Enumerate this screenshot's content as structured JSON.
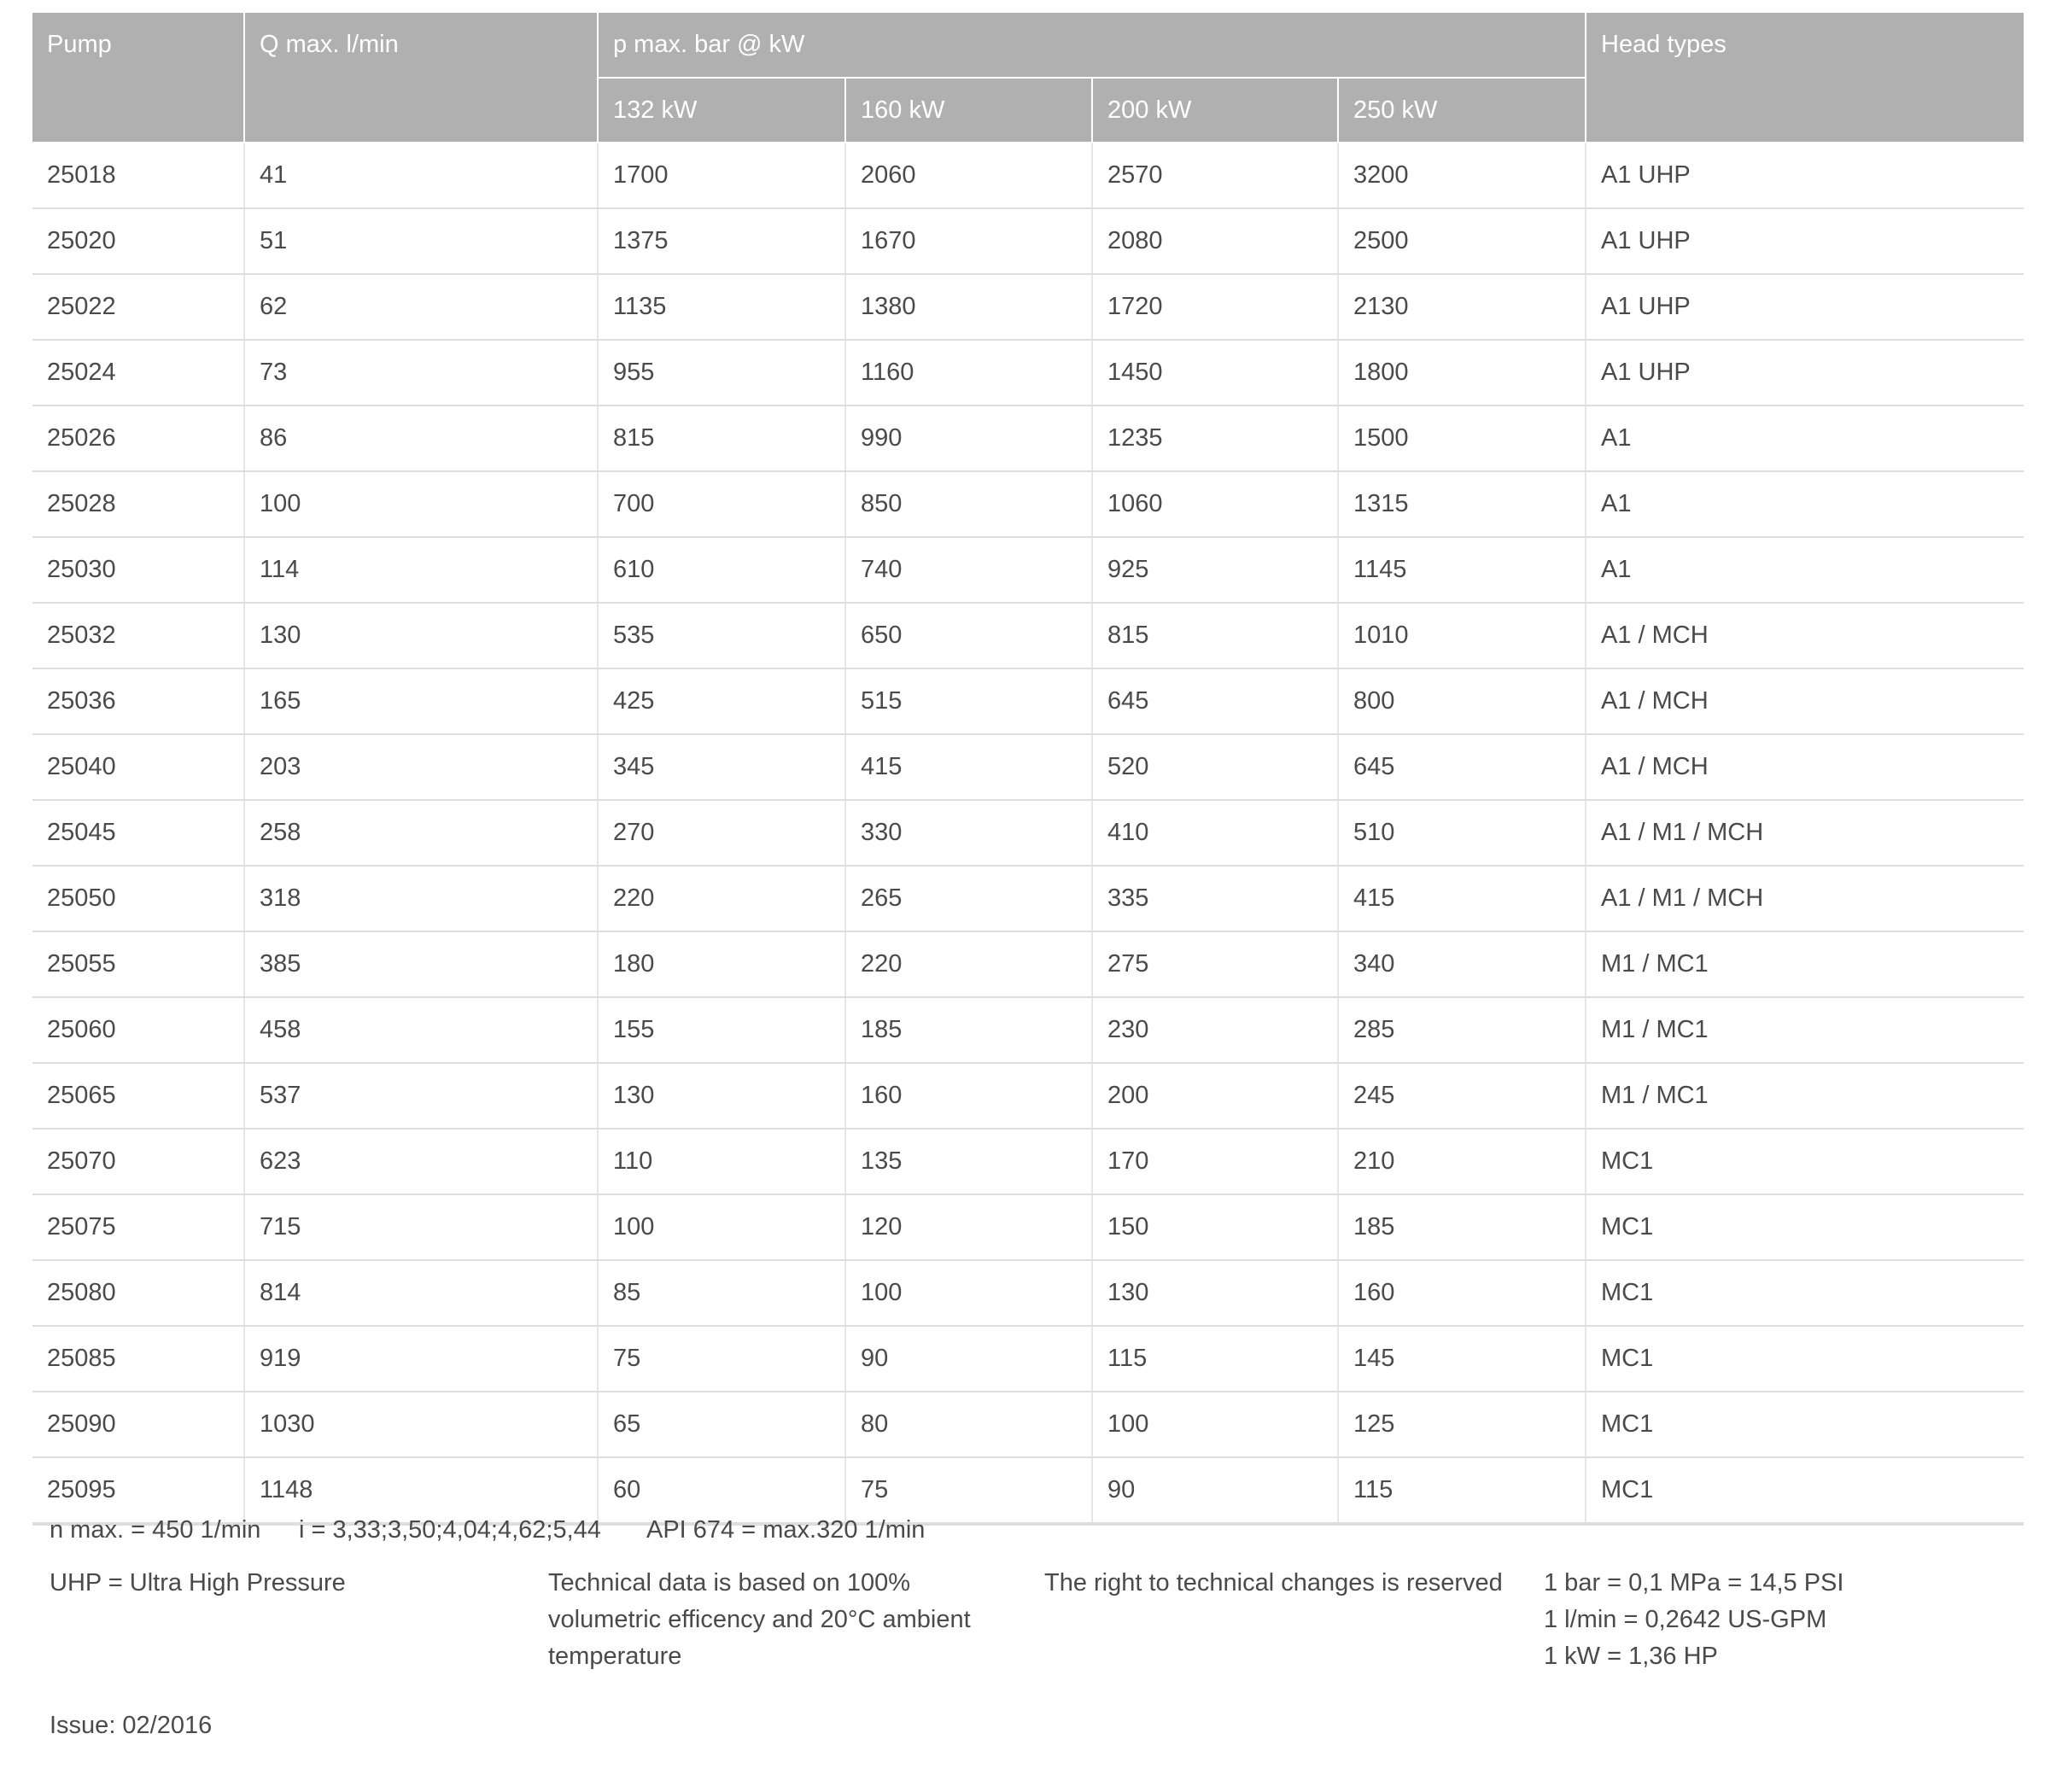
{
  "table": {
    "headers": {
      "pump": "Pump",
      "q_max": "Q max. l/min",
      "p_max": "p max. bar @ kW",
      "head_types": "Head types",
      "kw": [
        "132 kW",
        "160 kW",
        "200 kW",
        "250 kW"
      ]
    },
    "rows": [
      [
        "25018",
        "41",
        "1700",
        "2060",
        "2570",
        "3200",
        "A1 UHP"
      ],
      [
        "25020",
        "51",
        "1375",
        "1670",
        "2080",
        "2500",
        "A1 UHP"
      ],
      [
        "25022",
        "62",
        "1135",
        "1380",
        "1720",
        "2130",
        "A1 UHP"
      ],
      [
        "25024",
        "73",
        "955",
        "1160",
        "1450",
        "1800",
        "A1 UHP"
      ],
      [
        "25026",
        "86",
        "815",
        "990",
        "1235",
        "1500",
        "A1"
      ],
      [
        "25028",
        "100",
        "700",
        "850",
        "1060",
        "1315",
        "A1"
      ],
      [
        "25030",
        "114",
        "610",
        "740",
        "925",
        "1145",
        "A1"
      ],
      [
        "25032",
        "130",
        "535",
        "650",
        "815",
        "1010",
        "A1 / MCH"
      ],
      [
        "25036",
        "165",
        "425",
        "515",
        "645",
        "800",
        "A1 / MCH"
      ],
      [
        "25040",
        "203",
        "345",
        "415",
        "520",
        "645",
        "A1 / MCH"
      ],
      [
        "25045",
        "258",
        "270",
        "330",
        "410",
        "510",
        "A1 / M1 / MCH"
      ],
      [
        "25050",
        "318",
        "220",
        "265",
        "335",
        "415",
        "A1 / M1 / MCH"
      ],
      [
        "25055",
        "385",
        "180",
        "220",
        "275",
        "340",
        "M1 / MC1"
      ],
      [
        "25060",
        "458",
        "155",
        "185",
        "230",
        "285",
        "M1 / MC1"
      ],
      [
        "25065",
        "537",
        "130",
        "160",
        "200",
        "245",
        "M1 / MC1"
      ],
      [
        "25070",
        "623",
        "110",
        "135",
        "170",
        "210",
        "MC1"
      ],
      [
        "25075",
        "715",
        "100",
        "120",
        "150",
        "185",
        "MC1"
      ],
      [
        "25080",
        "814",
        "85",
        "100",
        "130",
        "160",
        "MC1"
      ],
      [
        "25085",
        "919",
        "75",
        "90",
        "115",
        "145",
        "MC1"
      ],
      [
        "25090",
        "1030",
        "65",
        "80",
        "100",
        "125",
        "MC1"
      ],
      [
        "25095",
        "1148",
        "60",
        "75",
        "90",
        "115",
        "MC1"
      ]
    ]
  },
  "footer": {
    "n_max": "n max. = 450 1/min",
    "ratio": "i = 3,33;3,50;4,04;4,62;5,44",
    "api": "API 674 = max.320 1/min",
    "uhp": "UHP = Ultra High Pressure",
    "technical_data": [
      "Technical data is based on 100%",
      "volumetric efficency and 20°C ambient",
      "temperature"
    ],
    "rights": "The right to technical changes is reserved",
    "conversions": [
      "1 bar = 0,1 MPa = 14,5 PSI",
      "1 l/min = 0,2642 US-GPM",
      "1 kW = 1,36 HP"
    ],
    "issue": "Issue: 02/2016"
  }
}
